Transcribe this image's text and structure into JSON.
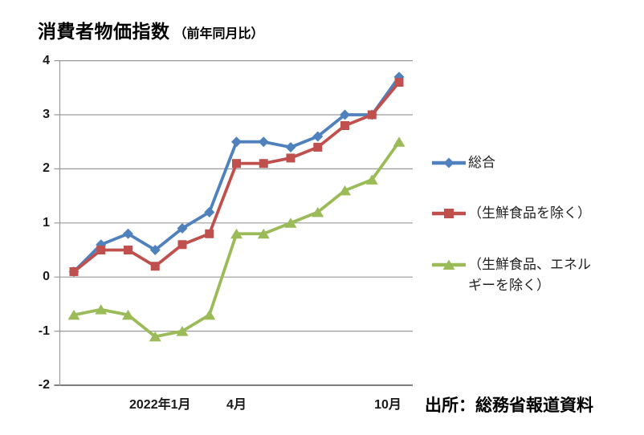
{
  "title": {
    "main": "消費者物価指数",
    "sub": "（前年同月比）"
  },
  "source": "出所：総務省報道資料",
  "legend": {
    "items": [
      {
        "text": "総合"
      },
      {
        "text": "（生鮮食品を除く）"
      },
      {
        "text": "（生鮮食品、エネル\nギーを除く）"
      }
    ]
  },
  "chart_data": {
    "type": "line",
    "title": "消費者物価指数（前年同月比）",
    "x_ticks": [
      {
        "index": 3,
        "label": "2022年1月"
      },
      {
        "index": 6,
        "label": "4月"
      },
      {
        "index": 12,
        "label": "10月"
      }
    ],
    "y_axis": {
      "min": -2,
      "max": 4,
      "ticks": [
        4,
        3,
        2,
        1,
        0,
        -1,
        -2
      ]
    },
    "grid": true,
    "legend_position": "right",
    "series": [
      {
        "name": "総合",
        "marker": "diamond",
        "color": "#4F81BD",
        "values": [
          0.1,
          0.6,
          0.8,
          0.5,
          0.9,
          1.2,
          2.5,
          2.5,
          2.4,
          2.6,
          3.0,
          3.0,
          3.7
        ]
      },
      {
        "name": "（生鮮食品を除く）",
        "marker": "square",
        "color": "#C0504D",
        "values": [
          0.1,
          0.5,
          0.5,
          0.2,
          0.6,
          0.8,
          2.1,
          2.1,
          2.2,
          2.4,
          2.8,
          3.0,
          3.6
        ]
      },
      {
        "name": "（生鮮食品、エネルギーを除く）",
        "marker": "triangle",
        "color": "#9BBB59",
        "values": [
          -0.7,
          -0.6,
          -0.7,
          -1.1,
          -1.0,
          -0.7,
          0.8,
          0.8,
          1.0,
          1.2,
          1.6,
          1.8,
          2.5
        ]
      }
    ]
  }
}
